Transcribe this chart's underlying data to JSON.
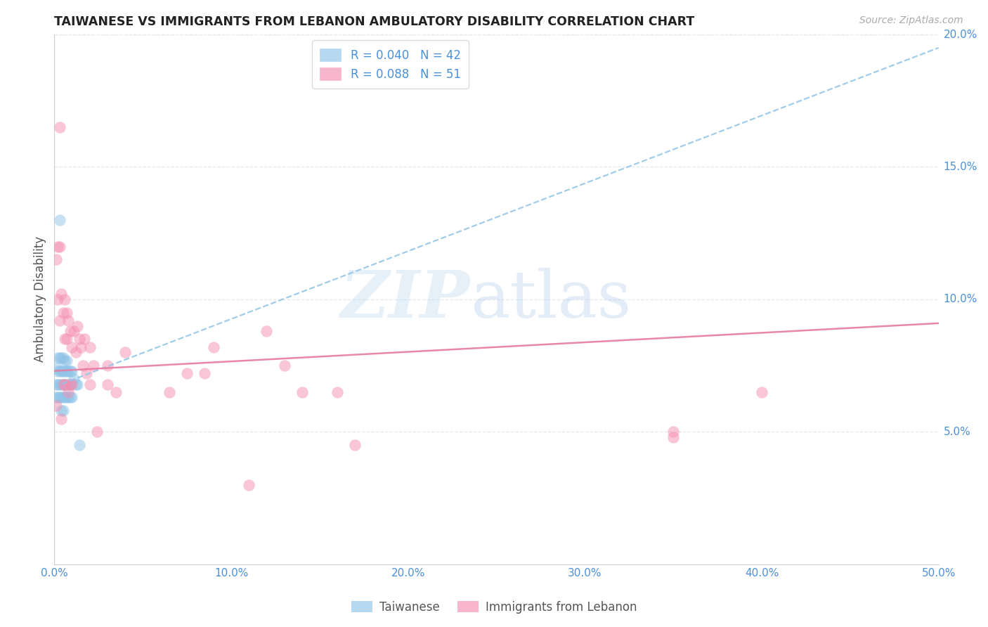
{
  "title": "TAIWANESE VS IMMIGRANTS FROM LEBANON AMBULATORY DISABILITY CORRELATION CHART",
  "source": "Source: ZipAtlas.com",
  "ylabel": "Ambulatory Disability",
  "watermark_zip": "ZIP",
  "watermark_atlas": "atlas",
  "xlim": [
    0.0,
    0.5
  ],
  "ylim": [
    0.0,
    0.2
  ],
  "xticks": [
    0.0,
    0.1,
    0.2,
    0.3,
    0.4,
    0.5
  ],
  "yticks_right": [
    0.05,
    0.1,
    0.15,
    0.2
  ],
  "xtick_labels": [
    "0.0%",
    "10.0%",
    "20.0%",
    "30.0%",
    "40.0%",
    "50.0%"
  ],
  "ytick_labels_right": [
    "5.0%",
    "10.0%",
    "15.0%",
    "20.0%"
  ],
  "legend1_label": "R = 0.040   N = 42",
  "legend2_label": "R = 0.088   N = 51",
  "taiwanese_color": "#90c4e8",
  "lebanon_color": "#f48fb1",
  "trendline_blue_color": "#90c4e8",
  "trendline_pink_color": "#e87aa0",
  "axis_tick_color": "#4a90d9",
  "grid_color": "#e0e8f0",
  "background_color": "#ffffff",
  "tw_trendline_x0": 0.0,
  "tw_trendline_y0": 0.067,
  "tw_trendline_x1": 0.5,
  "tw_trendline_y1": 0.195,
  "lb_trendline_x0": 0.0,
  "lb_trendline_y0": 0.073,
  "lb_trendline_x1": 0.5,
  "lb_trendline_y1": 0.091,
  "taiwanese_x": [
    0.001,
    0.001,
    0.001,
    0.002,
    0.002,
    0.002,
    0.002,
    0.003,
    0.003,
    0.003,
    0.003,
    0.003,
    0.004,
    0.004,
    0.004,
    0.004,
    0.004,
    0.005,
    0.005,
    0.005,
    0.005,
    0.005,
    0.006,
    0.006,
    0.006,
    0.006,
    0.007,
    0.007,
    0.007,
    0.007,
    0.008,
    0.008,
    0.008,
    0.009,
    0.009,
    0.009,
    0.01,
    0.01,
    0.011,
    0.012,
    0.013,
    0.014
  ],
  "taiwanese_y": [
    0.074,
    0.068,
    0.063,
    0.078,
    0.073,
    0.068,
    0.063,
    0.13,
    0.078,
    0.073,
    0.068,
    0.063,
    0.078,
    0.073,
    0.068,
    0.063,
    0.058,
    0.078,
    0.073,
    0.068,
    0.063,
    0.058,
    0.077,
    0.073,
    0.068,
    0.063,
    0.077,
    0.073,
    0.068,
    0.063,
    0.073,
    0.068,
    0.063,
    0.073,
    0.068,
    0.063,
    0.073,
    0.063,
    0.07,
    0.068,
    0.068,
    0.045
  ],
  "lebanon_x": [
    0.001,
    0.001,
    0.002,
    0.002,
    0.003,
    0.003,
    0.003,
    0.004,
    0.004,
    0.005,
    0.005,
    0.006,
    0.006,
    0.006,
    0.007,
    0.007,
    0.008,
    0.008,
    0.009,
    0.009,
    0.01,
    0.01,
    0.011,
    0.012,
    0.013,
    0.014,
    0.015,
    0.016,
    0.017,
    0.018,
    0.02,
    0.02,
    0.022,
    0.024,
    0.03,
    0.03,
    0.035,
    0.04,
    0.065,
    0.075,
    0.085,
    0.09,
    0.11,
    0.12,
    0.13,
    0.14,
    0.16,
    0.17,
    0.35,
    0.35,
    0.4
  ],
  "lebanon_y": [
    0.115,
    0.06,
    0.12,
    0.1,
    0.165,
    0.12,
    0.092,
    0.102,
    0.055,
    0.095,
    0.068,
    0.1,
    0.085,
    0.068,
    0.095,
    0.085,
    0.092,
    0.065,
    0.088,
    0.068,
    0.082,
    0.068,
    0.088,
    0.08,
    0.09,
    0.085,
    0.082,
    0.075,
    0.085,
    0.072,
    0.082,
    0.068,
    0.075,
    0.05,
    0.075,
    0.068,
    0.065,
    0.08,
    0.065,
    0.072,
    0.072,
    0.082,
    0.03,
    0.088,
    0.075,
    0.065,
    0.065,
    0.045,
    0.048,
    0.05,
    0.065
  ]
}
